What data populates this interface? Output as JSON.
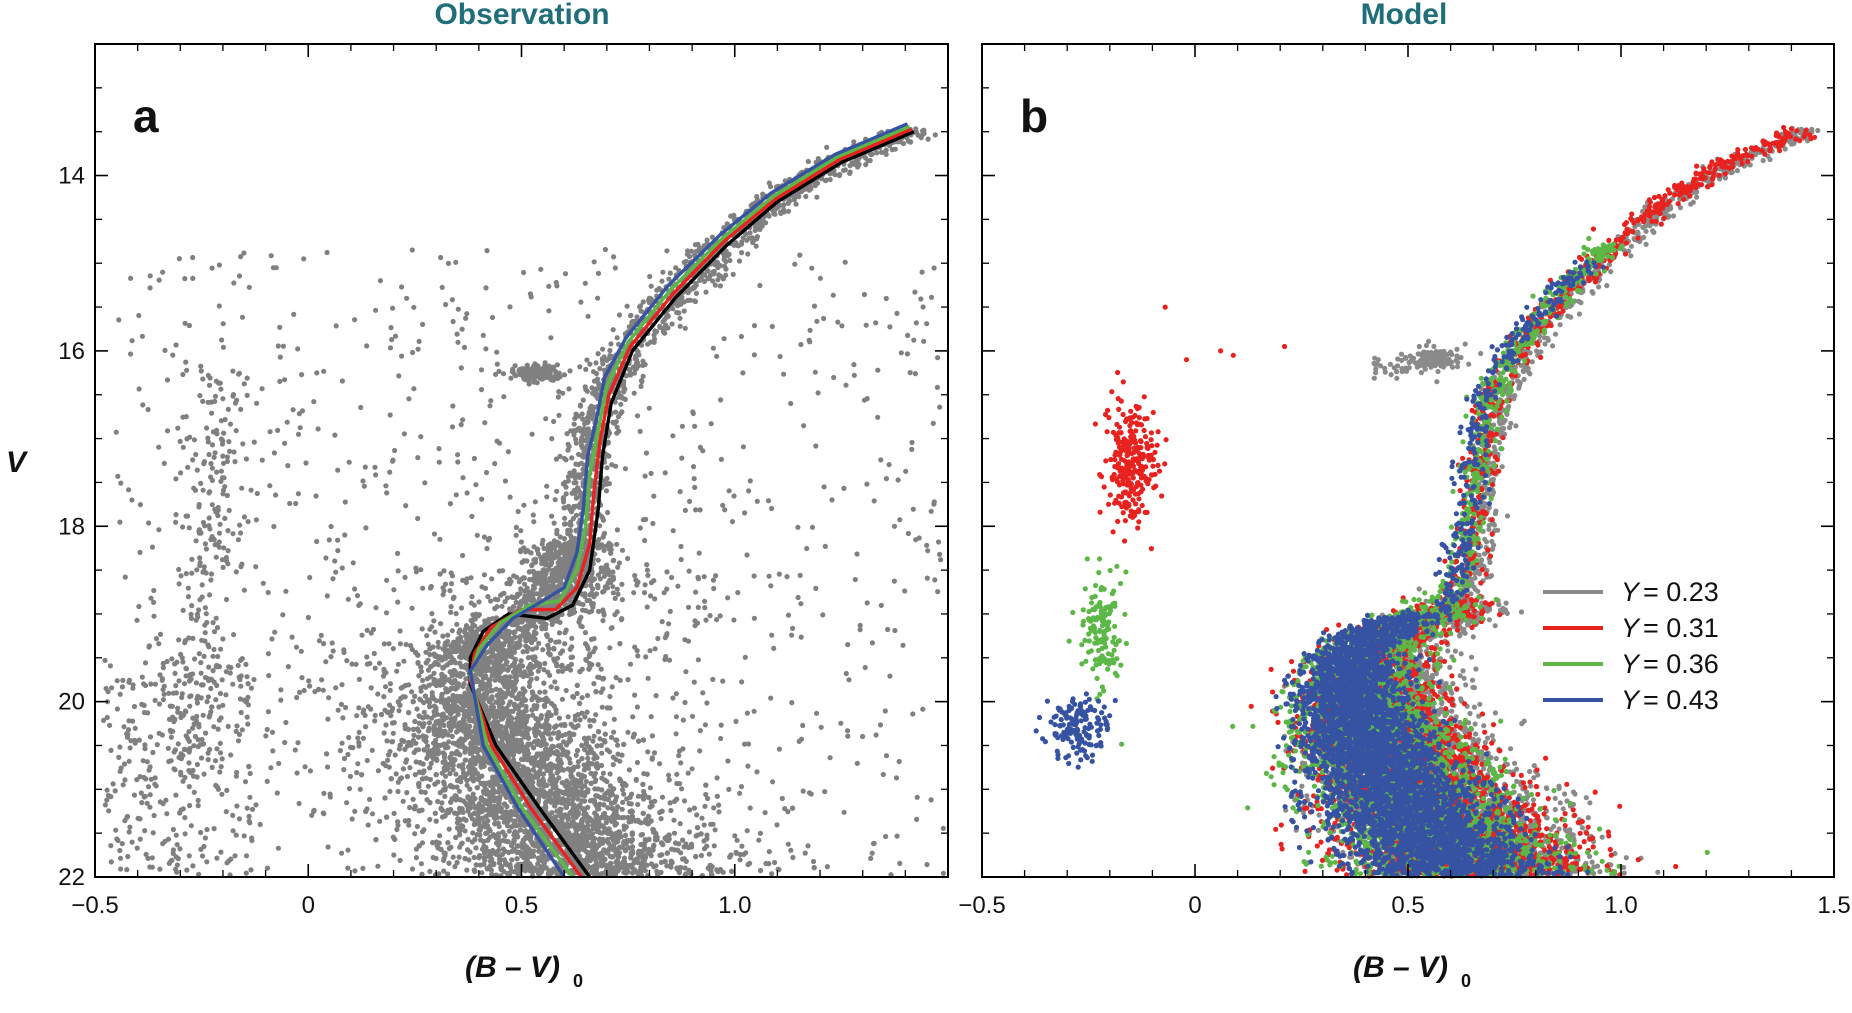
{
  "chart_data": [
    {
      "type": "scatter",
      "title": "Observation",
      "panel_label": "a",
      "xlabel": "(B – V)",
      "xlabel_subscript": "0",
      "ylabel": "V",
      "xlim": [
        -0.5,
        1.5
      ],
      "ylim": [
        22,
        12.5
      ],
      "y_inverted": true,
      "xticks": [
        -0.5,
        0,
        0.5,
        1.0
      ],
      "xtick_labels": [
        "−0.5",
        "0",
        "0.5",
        "1.0"
      ],
      "yticks": [
        14,
        16,
        18,
        20,
        22
      ],
      "ytick_labels": [
        "14",
        "16",
        "18",
        "20",
        "22"
      ],
      "colors": {
        "points": "#808080",
        "Y=0.23": "#000000",
        "Y=0.31": "#e8231f",
        "Y=0.36": "#5cb846",
        "Y=0.43": "#3652a3"
      },
      "isochrones": [
        {
          "name": "Y = 0.23",
          "color": "#000000",
          "points": [
            [
              0.66,
              22.0
            ],
            [
              0.54,
              21.2
            ],
            [
              0.44,
              20.5
            ],
            [
              0.38,
              19.8
            ],
            [
              0.38,
              19.5
            ],
            [
              0.41,
              19.2
            ],
            [
              0.47,
              19.0
            ],
            [
              0.56,
              19.05
            ],
            [
              0.62,
              18.9
            ],
            [
              0.66,
              18.5
            ],
            [
              0.68,
              17.8
            ],
            [
              0.69,
              17.2
            ],
            [
              0.71,
              16.6
            ],
            [
              0.76,
              16.0
            ],
            [
              0.86,
              15.4
            ],
            [
              0.98,
              14.8
            ],
            [
              1.1,
              14.3
            ],
            [
              1.25,
              13.85
            ],
            [
              1.42,
              13.5
            ]
          ]
        },
        {
          "name": "Y = 0.31",
          "color": "#e8231f",
          "points": [
            [
              0.64,
              22.0
            ],
            [
              0.52,
              21.2
            ],
            [
              0.43,
              20.5
            ],
            [
              0.38,
              19.75
            ],
            [
              0.39,
              19.45
            ],
            [
              0.43,
              19.15
            ],
            [
              0.5,
              18.95
            ],
            [
              0.58,
              18.95
            ],
            [
              0.63,
              18.7
            ],
            [
              0.66,
              18.2
            ],
            [
              0.67,
              17.6
            ],
            [
              0.685,
              17.0
            ],
            [
              0.705,
              16.5
            ],
            [
              0.755,
              15.95
            ],
            [
              0.855,
              15.35
            ],
            [
              0.975,
              14.75
            ],
            [
              1.095,
              14.27
            ],
            [
              1.245,
              13.82
            ],
            [
              1.415,
              13.47
            ]
          ]
        },
        {
          "name": "Y = 0.36",
          "color": "#5cb846",
          "points": [
            [
              0.62,
              22.0
            ],
            [
              0.5,
              21.2
            ],
            [
              0.42,
              20.5
            ],
            [
              0.38,
              19.7
            ],
            [
              0.4,
              19.4
            ],
            [
              0.45,
              19.1
            ],
            [
              0.52,
              18.9
            ],
            [
              0.59,
              18.85
            ],
            [
              0.63,
              18.5
            ],
            [
              0.65,
              18.0
            ],
            [
              0.66,
              17.4
            ],
            [
              0.68,
              16.9
            ],
            [
              0.7,
              16.4
            ],
            [
              0.75,
              15.9
            ],
            [
              0.85,
              15.3
            ],
            [
              0.97,
              14.72
            ],
            [
              1.09,
              14.24
            ],
            [
              1.24,
              13.79
            ],
            [
              1.41,
              13.44
            ]
          ]
        },
        {
          "name": "Y = 0.43",
          "color": "#3652a3",
          "points": [
            [
              0.6,
              22.0
            ],
            [
              0.49,
              21.2
            ],
            [
              0.41,
              20.5
            ],
            [
              0.38,
              19.65
            ],
            [
              0.42,
              19.35
            ],
            [
              0.48,
              19.05
            ],
            [
              0.55,
              18.85
            ],
            [
              0.6,
              18.7
            ],
            [
              0.63,
              18.3
            ],
            [
              0.645,
              17.8
            ],
            [
              0.655,
              17.2
            ],
            [
              0.675,
              16.8
            ],
            [
              0.695,
              16.3
            ],
            [
              0.745,
              15.85
            ],
            [
              0.845,
              15.25
            ],
            [
              0.965,
              14.68
            ],
            [
              1.085,
              14.2
            ],
            [
              1.235,
              13.76
            ],
            [
              1.405,
              13.41
            ]
          ]
        }
      ],
      "point_groups": [
        {
          "name": "main sequence + turnoff",
          "color": "#808080",
          "approx_count": 6000,
          "b_v_range": [
            0.15,
            1.05
          ],
          "v_range": [
            19.0,
            22.0
          ]
        },
        {
          "name": "subgiant + red giant branch",
          "color": "#808080",
          "approx_count": 1500,
          "b_v_range": [
            0.5,
            1.45
          ],
          "v_range": [
            13.4,
            19.0
          ]
        },
        {
          "name": "red horizontal branch clump",
          "color": "#808080",
          "center": [
            0.53,
            16.25
          ]
        },
        {
          "name": "blue horizontal branch",
          "color": "#808080",
          "b_v_range": [
            -0.45,
            -0.1
          ],
          "v_range": [
            16.0,
            21.5
          ]
        },
        {
          "name": "field scatter",
          "color": "#808080",
          "b_v_range": [
            -0.5,
            1.5
          ],
          "v_range": [
            13.5,
            22.0
          ]
        }
      ]
    },
    {
      "type": "scatter",
      "title": "Model",
      "panel_label": "b",
      "xlabel": "(B – V)",
      "xlabel_subscript": "0",
      "xlim": [
        -0.5,
        1.5
      ],
      "ylim": [
        22,
        12.5
      ],
      "y_inverted": true,
      "xticks": [
        -0.5,
        0,
        0.5,
        1.0,
        1.5
      ],
      "xtick_labels": [
        "−0.5",
        "0",
        "0.5",
        "1.0",
        "1.5"
      ],
      "yticks": [
        14,
        16,
        18,
        20,
        22
      ],
      "legend": [
        {
          "label": "Y",
          "value": "= 0.23",
          "color": "#8a8a8a"
        },
        {
          "label": "Y",
          "value": "= 0.31",
          "color": "#e8231f"
        },
        {
          "label": "Y",
          "value": "= 0.36",
          "color": "#5cb846"
        },
        {
          "label": "Y",
          "value": "= 0.43",
          "color": "#3652a3"
        }
      ],
      "legend_position": "right-middle",
      "point_groups": [
        {
          "name": "Y=0.23 population",
          "color": "#8a8a8a",
          "includes": [
            "main sequence",
            "giant branch",
            "red clump at (0.55, 16.1)"
          ]
        },
        {
          "name": "Y=0.31 population",
          "color": "#e8231f",
          "includes": [
            "main sequence",
            "giant branch",
            "horizontal branch at (-0.15, 17.3)"
          ]
        },
        {
          "name": "Y=0.36 population",
          "color": "#5cb846",
          "includes": [
            "main sequence",
            "giant branch",
            "horizontal branch at (-0.22, 19.2)"
          ]
        },
        {
          "name": "Y=0.43 population",
          "color": "#3652a3",
          "includes": [
            "main sequence",
            "giant branch",
            "horizontal branch at (-0.28, 20.3)"
          ]
        }
      ]
    }
  ]
}
